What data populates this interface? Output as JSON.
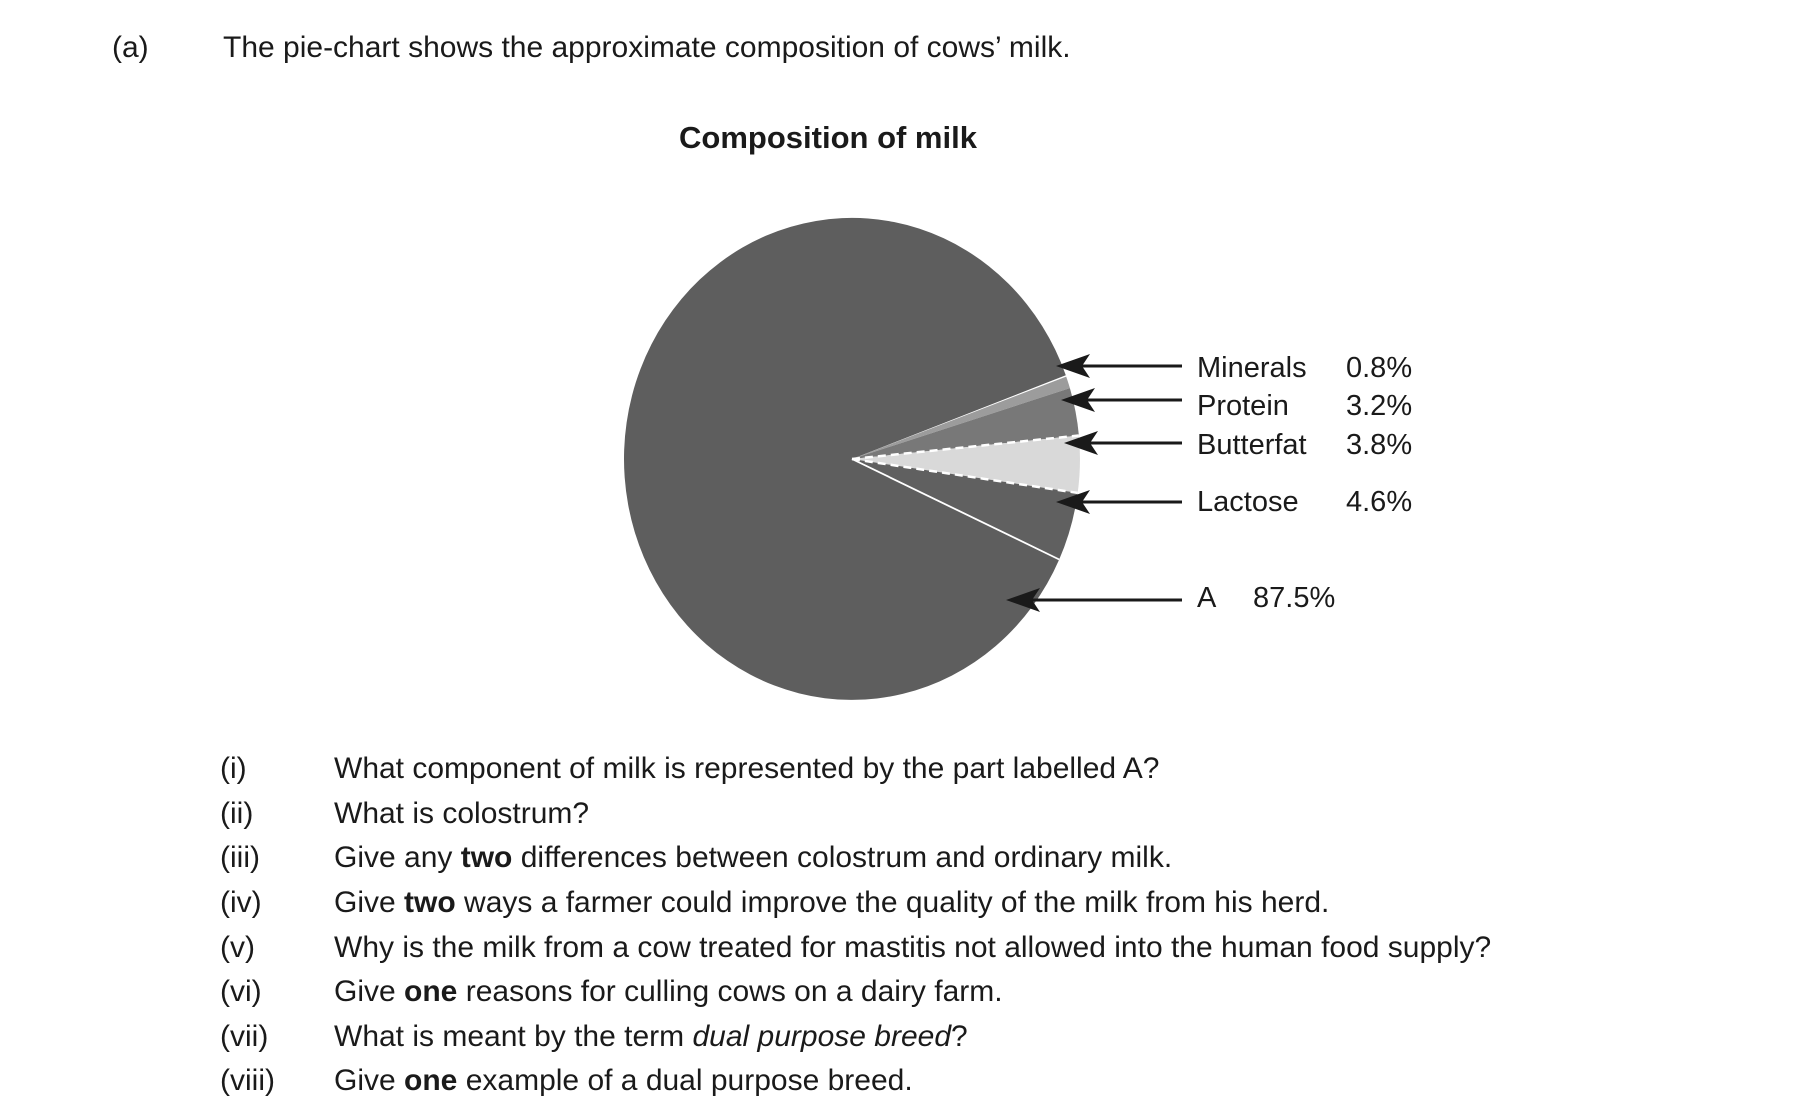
{
  "header": {
    "part_label": "(a)",
    "intro": "The pie-chart shows the approximate composition of cows’ milk."
  },
  "chart_data": {
    "type": "pie",
    "title": "Composition of milk",
    "legend_position": "right-with-arrows",
    "rotation_deg_from_12_clockwise": 70,
    "slices": [
      {
        "label": "Minerals",
        "value": 0.8,
        "display": "0.8%",
        "color": "#9c9c9c"
      },
      {
        "label": "Protein",
        "value": 3.2,
        "display": "3.2%",
        "color": "#787878"
      },
      {
        "label": "Butterfat",
        "value": 3.8,
        "display": "3.8%",
        "color": "#d9d9d9"
      },
      {
        "label": "Lactose",
        "value": 4.6,
        "display": "4.6%",
        "color": "#606060"
      },
      {
        "label": "A",
        "value": 87.5,
        "display": "87.5%",
        "color": "#5e5e5e"
      }
    ]
  },
  "questions": [
    {
      "numeral": "(i)",
      "segments": [
        {
          "text": "What component of milk is represented by the part labelled A?"
        }
      ]
    },
    {
      "numeral": "(ii)",
      "segments": [
        {
          "text": "What is colostrum?"
        }
      ]
    },
    {
      "numeral": "(iii)",
      "segments": [
        {
          "text": "Give any "
        },
        {
          "text": "two",
          "style": "bold"
        },
        {
          "text": " differences between colostrum and ordinary milk."
        }
      ]
    },
    {
      "numeral": "(iv)",
      "segments": [
        {
          "text": "Give "
        },
        {
          "text": "two",
          "style": "bold"
        },
        {
          "text": " ways a farmer could improve the quality of the milk from his herd."
        }
      ]
    },
    {
      "numeral": "(v)",
      "segments": [
        {
          "text": "Why is the milk from a cow treated for mastitis not allowed into the human food supply?"
        }
      ]
    },
    {
      "numeral": "(vi)",
      "segments": [
        {
          "text": "Give "
        },
        {
          "text": "one",
          "style": "bold"
        },
        {
          "text": " reasons for culling cows on a dairy farm."
        }
      ]
    },
    {
      "numeral": "(vii)",
      "segments": [
        {
          "text": "What is meant by the term "
        },
        {
          "text": "dual purpose breed",
          "style": "italic"
        },
        {
          "text": "?"
        }
      ]
    },
    {
      "numeral": "(viii)",
      "segments": [
        {
          "text": "Give "
        },
        {
          "text": "one",
          "style": "bold"
        },
        {
          "text": " example of a dual purpose breed."
        }
      ]
    }
  ]
}
